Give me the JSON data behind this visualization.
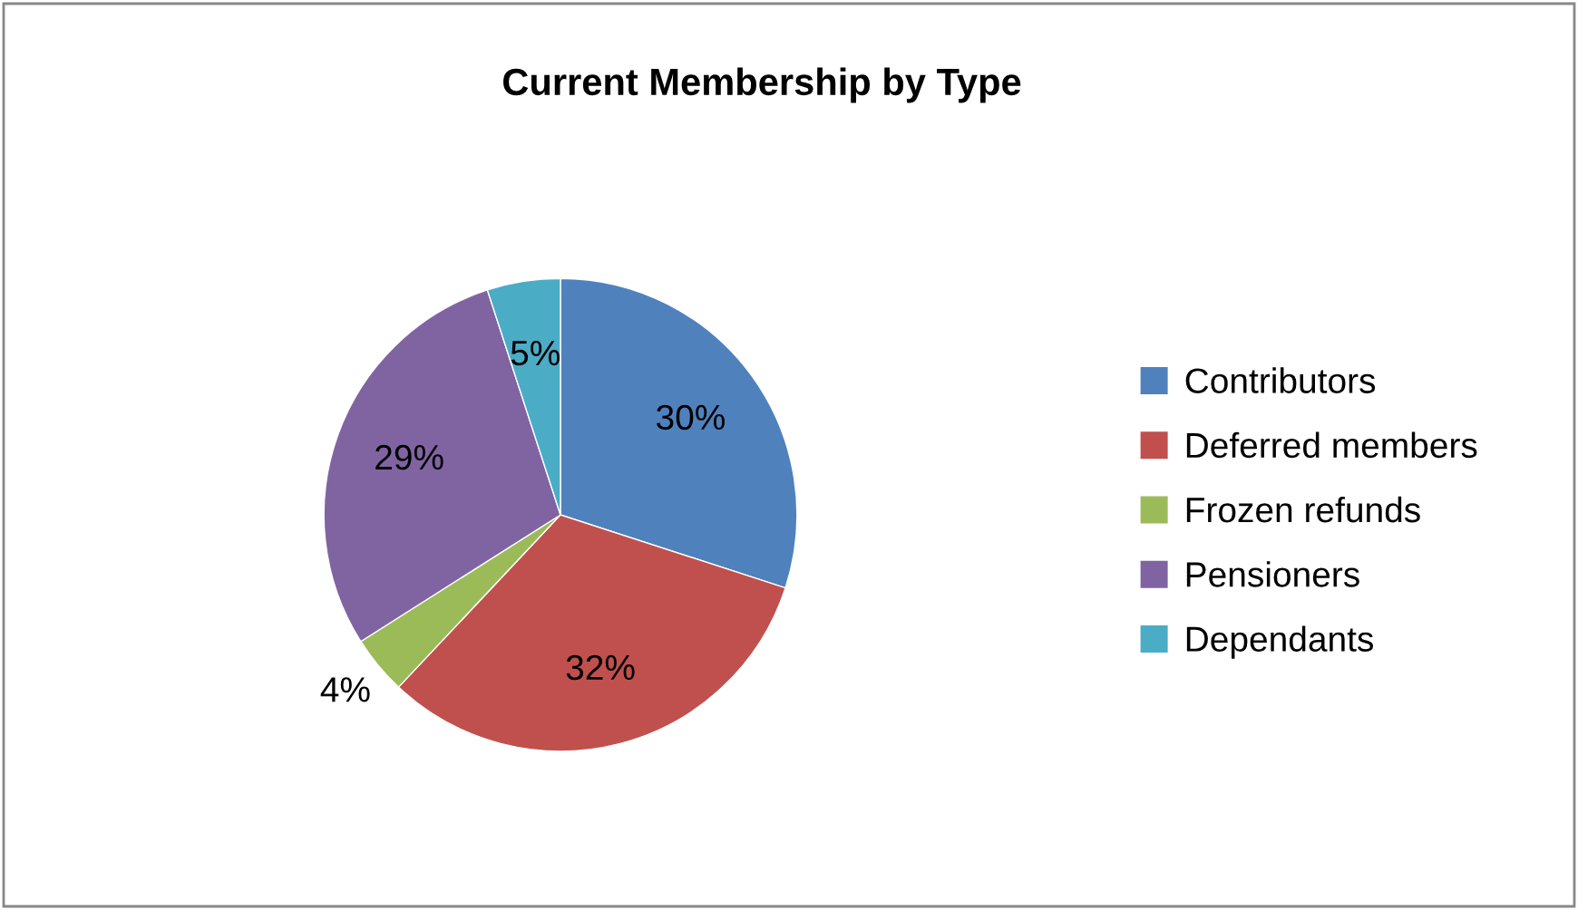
{
  "chart_data": {
    "type": "pie",
    "title": "Current Membership by Type",
    "categories": [
      "Contributors",
      "Deferred members",
      "Frozen refunds",
      "Pensioners",
      "Dependants"
    ],
    "values": [
      30,
      32,
      4,
      29,
      5
    ],
    "colors": [
      "#4f81bd",
      "#c0504d",
      "#9bbb59",
      "#8064a2",
      "#4bacc6"
    ],
    "value_labels": [
      "30%",
      "32%",
      "4%",
      "29%",
      "5%"
    ],
    "legend": "right"
  }
}
